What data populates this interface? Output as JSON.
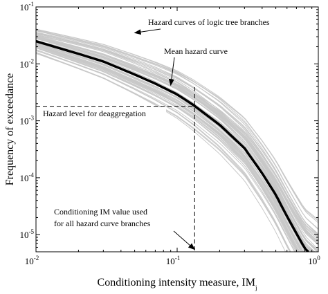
{
  "chart_data": {
    "type": "line",
    "xlabel": "Conditioning intensity measure, IM",
    "xlabel_subscript": "j",
    "ylabel": "Frequency of exceedance",
    "xscale": "log",
    "yscale": "log",
    "xlim": [
      0.01,
      1
    ],
    "ylim": [
      5e-06,
      0.1
    ],
    "grid": false,
    "x_ticks": [
      {
        "value": 0.01,
        "base": "10",
        "exp": "-2"
      },
      {
        "value": 0.1,
        "base": "10",
        "exp": "-1"
      },
      {
        "value": 1,
        "base": "10",
        "exp": "0"
      }
    ],
    "y_ticks": [
      {
        "value": 1e-05,
        "base": "10",
        "exp": "-5"
      },
      {
        "value": 0.0001,
        "base": "10",
        "exp": "-4"
      },
      {
        "value": 0.001,
        "base": "10",
        "exp": "-3"
      },
      {
        "value": 0.01,
        "base": "10",
        "exp": "-2"
      },
      {
        "value": 0.1,
        "base": "10",
        "exp": "-1"
      }
    ],
    "mean_curve": {
      "color": "#000000",
      "points": [
        [
          0.01,
          0.025
        ],
        [
          0.02,
          0.015
        ],
        [
          0.03,
          0.011
        ],
        [
          0.05,
          0.0065
        ],
        [
          0.07,
          0.0045
        ],
        [
          0.1,
          0.0029
        ],
        [
          0.13,
          0.0019
        ],
        [
          0.2,
          0.00085
        ],
        [
          0.3,
          0.00033
        ],
        [
          0.4,
          0.00012
        ],
        [
          0.5,
          5e-05
        ],
        [
          0.6,
          2.1e-05
        ],
        [
          0.7,
          1.05e-05
        ],
        [
          0.8,
          5.8e-06
        ],
        [
          0.85,
          5e-06
        ]
      ]
    },
    "branch_curves": {
      "color": "#c8c8c8",
      "count": 70
    },
    "conditioning_im": 0.133,
    "hazard_level": 0.0018,
    "annotations": [
      {
        "text": "Hazard curves of logic tree branches",
        "arrow_to": [
          0.05,
          0.035
        ]
      },
      {
        "text": "Mean hazard curve",
        "arrow_to": [
          0.09,
          0.0042
        ]
      },
      {
        "text": "Hazard level for deaggregation"
      },
      {
        "lines": [
          "Conditioning IM value used",
          "for all hazard curve branches"
        ],
        "arrow_to": [
          0.133,
          5.5e-06
        ]
      }
    ]
  }
}
